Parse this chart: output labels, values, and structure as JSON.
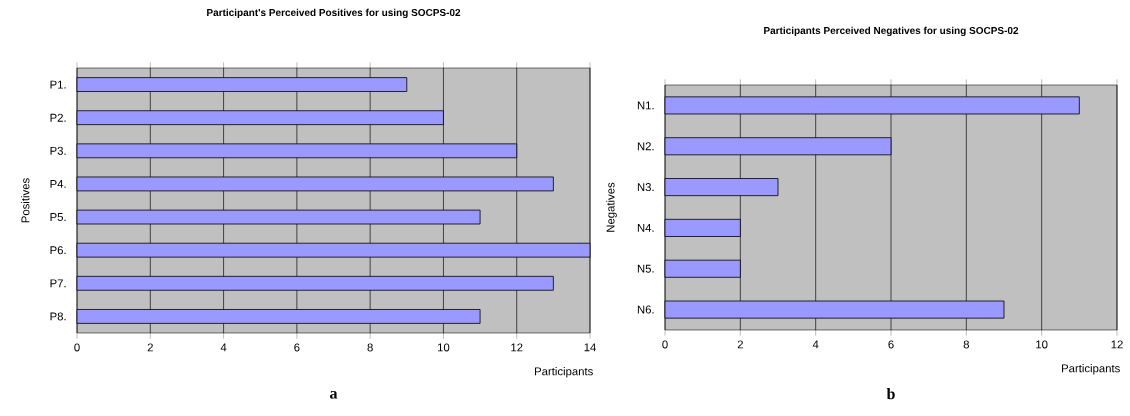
{
  "chart_data": [
    {
      "type": "bar",
      "orientation": "horizontal",
      "title": "Participant's Perceived Positives for using SOCPS-02",
      "xlabel": "Participants",
      "ylabel": "Positives",
      "categories": [
        "P1.",
        "P2.",
        "P3.",
        "P4.",
        "P5.",
        "P6.",
        "P7.",
        "P8."
      ],
      "values": [
        9,
        10,
        12,
        13,
        11,
        14,
        13,
        11
      ],
      "color": "#9999ff",
      "xlim": [
        0,
        14
      ],
      "xticks": [
        0,
        2,
        4,
        6,
        8,
        10,
        12,
        14
      ],
      "grid": "x",
      "annotations": [
        "a"
      ]
    },
    {
      "type": "bar",
      "orientation": "horizontal",
      "title": "Participants Perceived Negatives for using SOCPS-02",
      "xlabel": "Participants",
      "ylabel": "Negatives",
      "categories": [
        "N1.",
        "N2.",
        "N3.",
        "N4.",
        "N5.",
        "N6."
      ],
      "values": [
        11,
        6,
        3,
        2,
        2,
        9
      ],
      "color": "#9999ff",
      "xlim": [
        0,
        12
      ],
      "xticks": [
        0,
        2,
        4,
        6,
        8,
        10,
        12
      ],
      "grid": "x",
      "annotations": [
        "b"
      ]
    }
  ]
}
